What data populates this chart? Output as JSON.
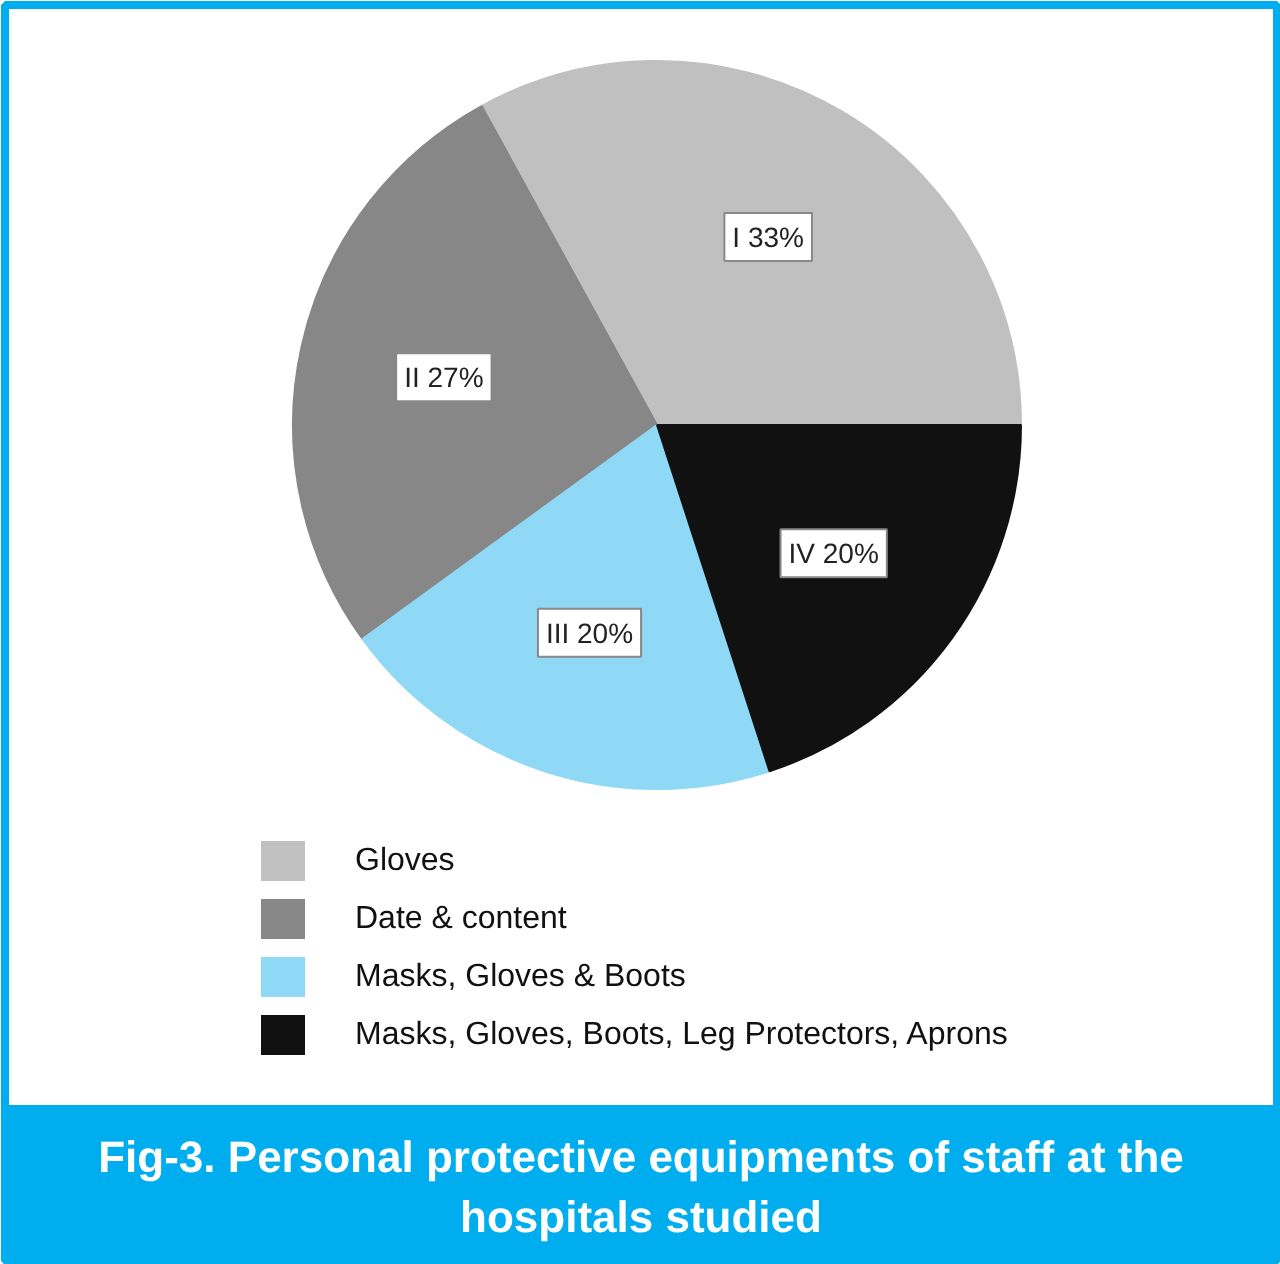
{
  "chart_data": {
    "type": "pie",
    "title": "Fig-3. Personal protective equipments of staff at the hospitals studied",
    "categories": [
      "Gloves",
      "Date & content",
      "Masks, Gloves & Boots",
      "Masks, Gloves, Boots, Leg Protectors, Aprons"
    ],
    "values": [
      33,
      27,
      20,
      20
    ],
    "colors": [
      "#c0c0c0",
      "#878787",
      "#8fd9f7",
      "#111111"
    ],
    "value_labels": [
      "I 33%",
      "II 27%",
      "III 20%",
      "IV 20%"
    ],
    "legend": "bottom"
  }
}
